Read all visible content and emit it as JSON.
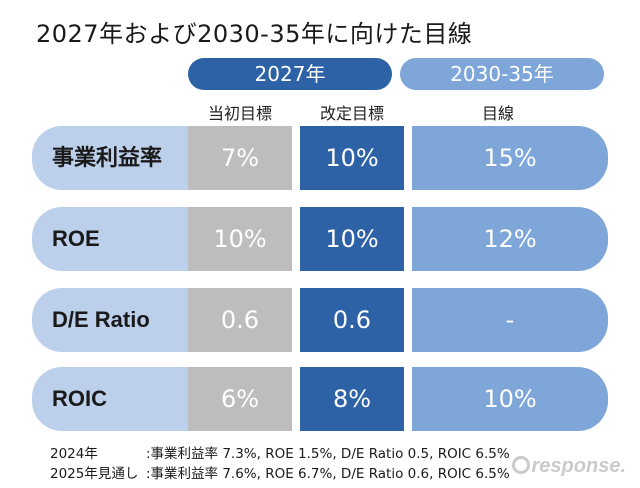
{
  "title": "2027年および2030-35年に向けた目線",
  "headers": {
    "year_2027": "2027年",
    "year_2030_35": "2030-35年",
    "initial_target": "当初目標",
    "revised_target": "改定目標",
    "target_line": "目線"
  },
  "rows": [
    {
      "label": "事業利益率",
      "initial": "7%",
      "revised": "10%",
      "target": "15%"
    },
    {
      "label": "ROE",
      "initial": "10%",
      "revised": "10%",
      "target": "12%"
    },
    {
      "label": "D/E Ratio",
      "initial": "0.6",
      "revised": "0.6",
      "target": "-"
    },
    {
      "label": "ROIC",
      "initial": "6%",
      "revised": "8%",
      "target": "10%"
    }
  ],
  "footnotes": [
    {
      "label": "2024年",
      "text": ":事業利益率 7.3%, ROE 1.5%, D/E Ratio 0.5, ROIC 6.5%"
    },
    {
      "label": "2025年見通し",
      "text": ":事業利益率 7.6%, ROE 6.7%, D/E Ratio 0.6, ROIC 6.5%"
    }
  ],
  "watermark": "response.",
  "colors": {
    "primary_blue": "#2e62a6",
    "light_blue": "#7ea6d8",
    "label_blue": "#bcd0ec",
    "gray": "#bdbdbd"
  }
}
